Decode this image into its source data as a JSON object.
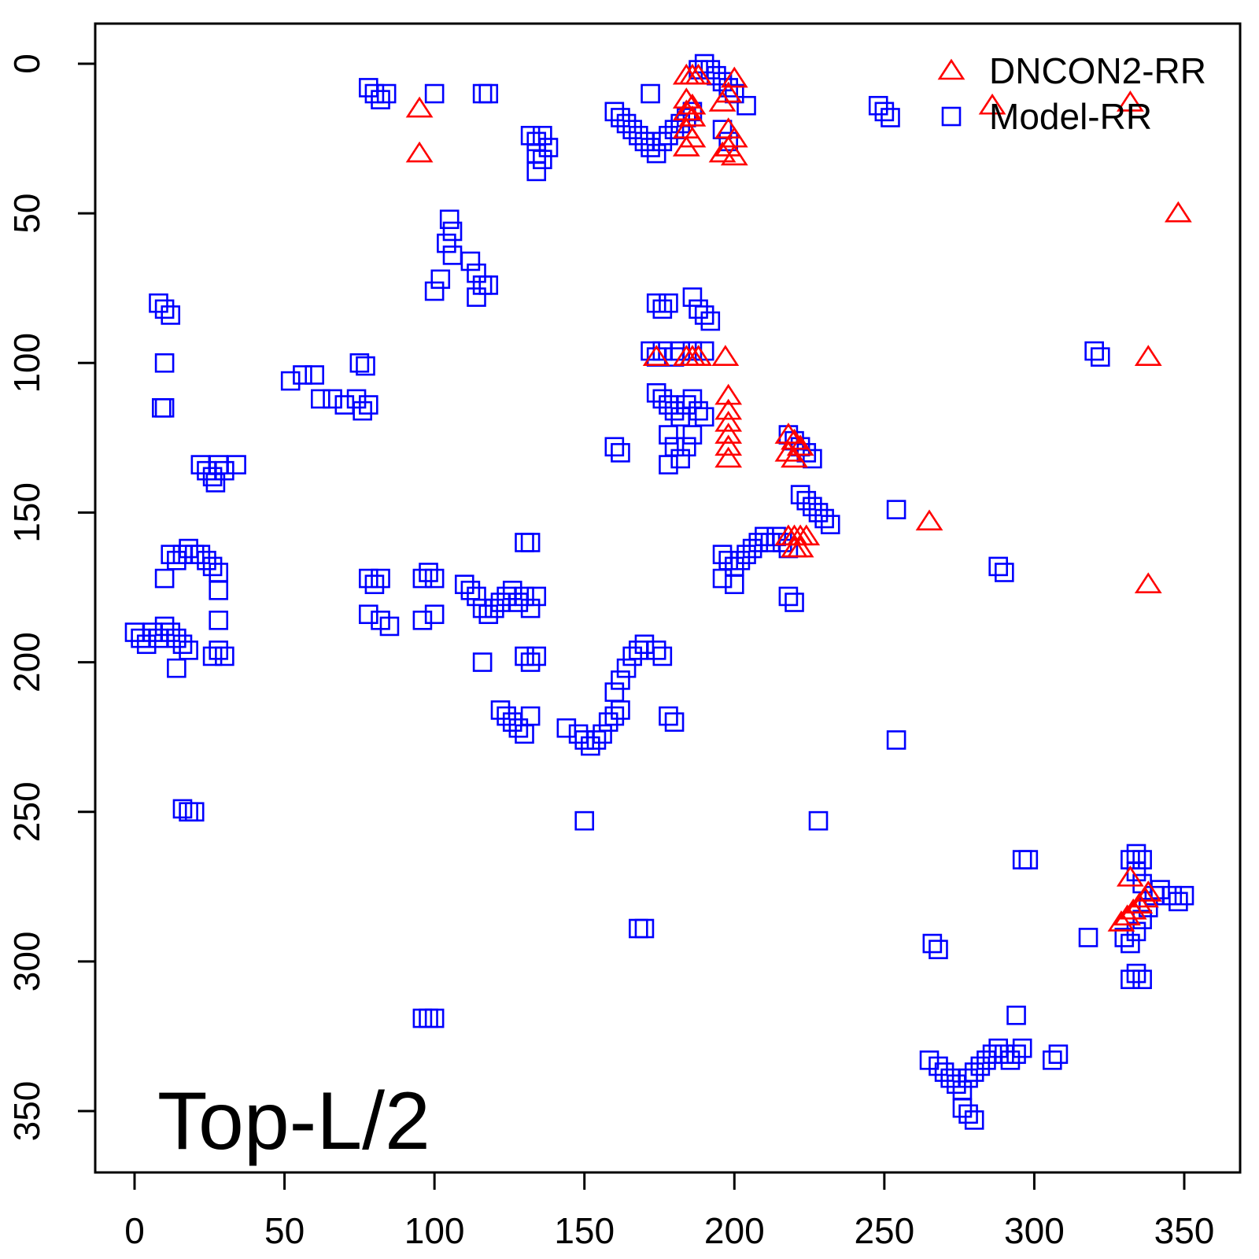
{
  "chart_data": {
    "type": "scatter",
    "title": "",
    "xlabel": "",
    "ylabel": "",
    "xlim": [
      -13,
      372
    ],
    "ylim": [
      -13,
      372
    ],
    "y_axis_inverted": true,
    "x_ticks": [
      0,
      50,
      100,
      150,
      200,
      250,
      300,
      350
    ],
    "y_ticks": [
      0,
      50,
      100,
      150,
      200,
      250,
      300,
      350
    ],
    "grid": false,
    "legend_position": "top-right",
    "annotation": "Top-L/2",
    "series": [
      {
        "name": "DNCON2-RR",
        "marker": "triangle",
        "color": "#ff0000",
        "points": [
          [
            95,
            15
          ],
          [
            95,
            30
          ],
          [
            184,
            4
          ],
          [
            186,
            4
          ],
          [
            188,
            4
          ],
          [
            200,
            5
          ],
          [
            198,
            10
          ],
          [
            196,
            13
          ],
          [
            184,
            12
          ],
          [
            186,
            14
          ],
          [
            184,
            16
          ],
          [
            186,
            18
          ],
          [
            184,
            22
          ],
          [
            186,
            25
          ],
          [
            184,
            28
          ],
          [
            198,
            22
          ],
          [
            200,
            25
          ],
          [
            198,
            28
          ],
          [
            196,
            30
          ],
          [
            200,
            31
          ],
          [
            286,
            14
          ],
          [
            332,
            13
          ],
          [
            348,
            50
          ],
          [
            174,
            98
          ],
          [
            184,
            98
          ],
          [
            186,
            98
          ],
          [
            188,
            98
          ],
          [
            197,
            98
          ],
          [
            338,
            98
          ],
          [
            198,
            111
          ],
          [
            198,
            116
          ],
          [
            198,
            120
          ],
          [
            198,
            124
          ],
          [
            198,
            128
          ],
          [
            198,
            132
          ],
          [
            218,
            124
          ],
          [
            220,
            126
          ],
          [
            222,
            128
          ],
          [
            218,
            130
          ],
          [
            220,
            132
          ],
          [
            218,
            158
          ],
          [
            220,
            158
          ],
          [
            222,
            158
          ],
          [
            224,
            158
          ],
          [
            220,
            162
          ],
          [
            222,
            162
          ],
          [
            265,
            153
          ],
          [
            338,
            174
          ],
          [
            332,
            272
          ],
          [
            329,
            287
          ],
          [
            331,
            285
          ],
          [
            333,
            283
          ],
          [
            335,
            281
          ],
          [
            337,
            279
          ],
          [
            338,
            277
          ]
        ]
      },
      {
        "name": "Model-RR",
        "marker": "square",
        "color": "#0000ff",
        "points": [
          [
            8,
            80
          ],
          [
            10,
            82
          ],
          [
            12,
            84
          ],
          [
            10,
            100
          ],
          [
            9,
            115
          ],
          [
            10,
            115
          ],
          [
            16,
            249
          ],
          [
            18,
            250
          ],
          [
            20,
            250
          ],
          [
            0,
            190
          ],
          [
            2,
            192
          ],
          [
            4,
            194
          ],
          [
            6,
            190
          ],
          [
            8,
            192
          ],
          [
            10,
            188
          ],
          [
            12,
            190
          ],
          [
            14,
            192
          ],
          [
            16,
            194
          ],
          [
            18,
            196
          ],
          [
            14,
            202
          ],
          [
            10,
            172
          ],
          [
            12,
            164
          ],
          [
            14,
            166
          ],
          [
            16,
            164
          ],
          [
            18,
            162
          ],
          [
            20,
            164
          ],
          [
            22,
            164
          ],
          [
            24,
            166
          ],
          [
            26,
            168
          ],
          [
            28,
            170
          ],
          [
            28,
            176
          ],
          [
            28,
            186
          ],
          [
            28,
            196
          ],
          [
            26,
            198
          ],
          [
            30,
            198
          ],
          [
            22,
            134
          ],
          [
            24,
            136
          ],
          [
            26,
            138
          ],
          [
            28,
            134
          ],
          [
            30,
            136
          ],
          [
            34,
            134
          ],
          [
            27,
            140
          ],
          [
            52,
            106
          ],
          [
            56,
            104
          ],
          [
            60,
            104
          ],
          [
            62,
            112
          ],
          [
            66,
            112
          ],
          [
            70,
            114
          ],
          [
            74,
            112
          ],
          [
            76,
            116
          ],
          [
            78,
            114
          ],
          [
            75,
            100
          ],
          [
            77,
            101
          ],
          [
            78,
            8
          ],
          [
            80,
            10
          ],
          [
            82,
            12
          ],
          [
            84,
            10
          ],
          [
            78,
            172
          ],
          [
            80,
            174
          ],
          [
            82,
            172
          ],
          [
            78,
            184
          ],
          [
            82,
            186
          ],
          [
            85,
            188
          ],
          [
            96,
            172
          ],
          [
            98,
            170
          ],
          [
            100,
            172
          ],
          [
            96,
            186
          ],
          [
            100,
            184
          ],
          [
            100,
            10
          ],
          [
            116,
            10
          ],
          [
            118,
            10
          ],
          [
            116,
            200
          ],
          [
            96,
            319
          ],
          [
            98,
            319
          ],
          [
            100,
            319
          ],
          [
            105,
            52
          ],
          [
            106,
            56
          ],
          [
            104,
            60
          ],
          [
            106,
            64
          ],
          [
            102,
            72
          ],
          [
            100,
            76
          ],
          [
            112,
            66
          ],
          [
            114,
            70
          ],
          [
            116,
            74
          ],
          [
            114,
            78
          ],
          [
            118,
            74
          ],
          [
            110,
            174
          ],
          [
            112,
            176
          ],
          [
            114,
            178
          ],
          [
            116,
            182
          ],
          [
            118,
            184
          ],
          [
            120,
            182
          ],
          [
            122,
            180
          ],
          [
            124,
            178
          ],
          [
            126,
            176
          ],
          [
            128,
            180
          ],
          [
            130,
            178
          ],
          [
            132,
            182
          ],
          [
            134,
            178
          ],
          [
            130,
            160
          ],
          [
            132,
            160
          ],
          [
            130,
            198
          ],
          [
            132,
            200
          ],
          [
            134,
            198
          ],
          [
            132,
            24
          ],
          [
            134,
            26
          ],
          [
            136,
            24
          ],
          [
            134,
            30
          ],
          [
            136,
            32
          ],
          [
            138,
            28
          ],
          [
            134,
            36
          ],
          [
            122,
            216
          ],
          [
            124,
            218
          ],
          [
            126,
            220
          ],
          [
            128,
            222
          ],
          [
            130,
            224
          ],
          [
            132,
            218
          ],
          [
            144,
            222
          ],
          [
            148,
            224
          ],
          [
            150,
            226
          ],
          [
            152,
            228
          ],
          [
            154,
            226
          ],
          [
            156,
            224
          ],
          [
            158,
            220
          ],
          [
            160,
            218
          ],
          [
            162,
            216
          ],
          [
            162,
            206
          ],
          [
            164,
            202
          ],
          [
            166,
            198
          ],
          [
            168,
            196
          ],
          [
            170,
            194
          ],
          [
            174,
            196
          ],
          [
            176,
            198
          ],
          [
            160,
            210
          ],
          [
            178,
            218
          ],
          [
            180,
            220
          ],
          [
            150,
            253
          ],
          [
            168,
            289
          ],
          [
            170,
            289
          ],
          [
            160,
            128
          ],
          [
            162,
            130
          ],
          [
            160,
            16
          ],
          [
            162,
            18
          ],
          [
            164,
            20
          ],
          [
            166,
            22
          ],
          [
            168,
            24
          ],
          [
            170,
            26
          ],
          [
            172,
            28
          ],
          [
            174,
            30
          ],
          [
            176,
            26
          ],
          [
            178,
            24
          ],
          [
            180,
            22
          ],
          [
            182,
            20
          ],
          [
            184,
            18
          ],
          [
            186,
            16
          ],
          [
            172,
            10
          ],
          [
            188,
            2
          ],
          [
            190,
            0
          ],
          [
            192,
            2
          ],
          [
            194,
            4
          ],
          [
            196,
            6
          ],
          [
            198,
            8
          ],
          [
            200,
            10
          ],
          [
            204,
            14
          ],
          [
            196,
            22
          ],
          [
            198,
            26
          ],
          [
            174,
            80
          ],
          [
            176,
            82
          ],
          [
            178,
            80
          ],
          [
            186,
            78
          ],
          [
            188,
            82
          ],
          [
            190,
            84
          ],
          [
            192,
            86
          ],
          [
            172,
            96
          ],
          [
            174,
            98
          ],
          [
            176,
            96
          ],
          [
            180,
            98
          ],
          [
            182,
            96
          ],
          [
            186,
            96
          ],
          [
            190,
            96
          ],
          [
            174,
            110
          ],
          [
            176,
            112
          ],
          [
            178,
            114
          ],
          [
            180,
            116
          ],
          [
            182,
            118
          ],
          [
            184,
            114
          ],
          [
            186,
            112
          ],
          [
            188,
            116
          ],
          [
            190,
            118
          ],
          [
            178,
            124
          ],
          [
            180,
            128
          ],
          [
            182,
            132
          ],
          [
            184,
            128
          ],
          [
            186,
            124
          ],
          [
            178,
            134
          ],
          [
            196,
            164
          ],
          [
            198,
            166
          ],
          [
            200,
            168
          ],
          [
            202,
            166
          ],
          [
            204,
            164
          ],
          [
            196,
            172
          ],
          [
            200,
            174
          ],
          [
            206,
            162
          ],
          [
            208,
            160
          ],
          [
            210,
            158
          ],
          [
            212,
            160
          ],
          [
            214,
            158
          ],
          [
            216,
            160
          ],
          [
            218,
            162
          ],
          [
            218,
            124
          ],
          [
            220,
            126
          ],
          [
            222,
            128
          ],
          [
            224,
            130
          ],
          [
            226,
            132
          ],
          [
            222,
            144
          ],
          [
            224,
            146
          ],
          [
            226,
            148
          ],
          [
            228,
            150
          ],
          [
            230,
            152
          ],
          [
            232,
            154
          ],
          [
            218,
            178
          ],
          [
            220,
            180
          ],
          [
            228,
            253
          ],
          [
            248,
            14
          ],
          [
            250,
            16
          ],
          [
            252,
            18
          ],
          [
            254,
            149
          ],
          [
            254,
            226
          ],
          [
            266,
            294
          ],
          [
            268,
            296
          ],
          [
            288,
            168
          ],
          [
            290,
            170
          ],
          [
            294,
            318
          ],
          [
            296,
            266
          ],
          [
            298,
            266
          ],
          [
            265,
            333
          ],
          [
            268,
            335
          ],
          [
            270,
            337
          ],
          [
            272,
            339
          ],
          [
            274,
            341
          ],
          [
            276,
            343
          ],
          [
            278,
            339
          ],
          [
            280,
            337
          ],
          [
            282,
            335
          ],
          [
            284,
            333
          ],
          [
            286,
            331
          ],
          [
            288,
            329
          ],
          [
            290,
            331
          ],
          [
            292,
            333
          ],
          [
            294,
            331
          ],
          [
            296,
            329
          ],
          [
            276,
            349
          ],
          [
            278,
            351
          ],
          [
            280,
            353
          ],
          [
            306,
            333
          ],
          [
            308,
            331
          ],
          [
            318,
            292
          ],
          [
            320,
            96
          ],
          [
            322,
            98
          ],
          [
            330,
            292
          ],
          [
            332,
            294
          ],
          [
            334,
            290
          ],
          [
            336,
            286
          ],
          [
            338,
            282
          ],
          [
            340,
            278
          ],
          [
            342,
            276
          ],
          [
            346,
            278
          ],
          [
            348,
            280
          ],
          [
            350,
            278
          ],
          [
            332,
            266
          ],
          [
            334,
            264
          ],
          [
            336,
            266
          ],
          [
            334,
            270
          ],
          [
            336,
            274
          ],
          [
            332,
            306
          ],
          [
            334,
            304
          ],
          [
            336,
            306
          ]
        ]
      }
    ]
  }
}
